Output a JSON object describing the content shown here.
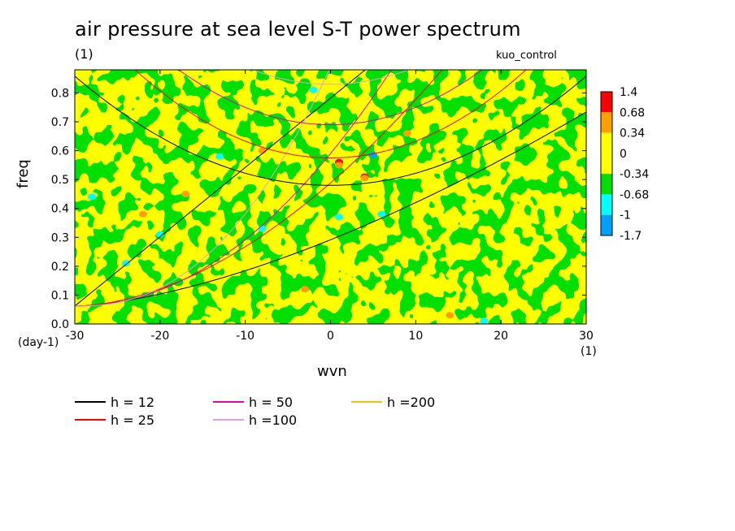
{
  "header": {
    "title": "air pressure at sea level S-T power spectrum",
    "units": "(1)",
    "run_label": "kuo_control"
  },
  "chart_data": {
    "type": "heatmap",
    "title": "air pressure at sea level S-T power spectrum",
    "xlabel": "wvn",
    "ylabel": "freq",
    "x_units": "(1)",
    "y_units": "(day-1)",
    "xlim": [
      -30,
      30
    ],
    "ylim": [
      0,
      0.88
    ],
    "x_ticks": [
      "-30",
      "-20",
      "-10",
      "0",
      "10",
      "20",
      "30"
    ],
    "y_ticks": [
      "0.0",
      "0.1",
      "0.2",
      "0.3",
      "0.4",
      "0.5",
      "0.6",
      "0.7",
      "0.8"
    ],
    "colorbar": {
      "levels": [
        "1.4",
        "0.68",
        "0.34",
        "0",
        "-0.34",
        "-0.68",
        "-1",
        "-1.7"
      ],
      "colors": [
        "#ff0000",
        "#ffa000",
        "#ffff00",
        "#ffff00",
        "#00e000",
        "#00ffff",
        "#00a0ff",
        "#0050ff"
      ]
    },
    "dispersion_curves": [
      {
        "name": "h = 12",
        "color": "#000000"
      },
      {
        "name": "h = 25",
        "color": "#ff0000"
      },
      {
        "name": "h = 50",
        "color": "#e000c0"
      },
      {
        "name": "h =100",
        "color": "#e0a0e0"
      },
      {
        "name": "h =200",
        "color": "#ffc000"
      }
    ],
    "field_colors": {
      "low": "#00e000",
      "high": "#ffff00",
      "orange": "#ffa000",
      "cyan": "#00ffff",
      "blue": "#00a0ff",
      "red": "#ff0000"
    },
    "grid": false
  }
}
